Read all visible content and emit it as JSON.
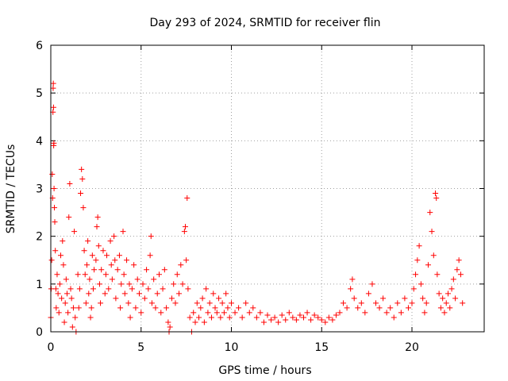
{
  "chart_data": {
    "type": "scatter",
    "title": "Day 293 of 2024, SRMTID for receiver flin",
    "xlabel": "GPS time / hours",
    "ylabel": "SRMTID / TECUs",
    "xlim": [
      0,
      24
    ],
    "ylim": [
      0,
      6
    ],
    "xticks": [
      0,
      5,
      10,
      15,
      20
    ],
    "yticks": [
      0,
      1,
      2,
      3,
      4,
      5,
      6
    ],
    "grid": true,
    "marker": "+",
    "marker_color": "#ff0000",
    "series": [
      {
        "name": "SRMTID",
        "points": [
          [
            0.0,
            0.3
          ],
          [
            0.02,
            0.9
          ],
          [
            0.05,
            1.5
          ],
          [
            0.08,
            3.3
          ],
          [
            0.1,
            2.8
          ],
          [
            0.12,
            4.6
          ],
          [
            0.13,
            5.1
          ],
          [
            0.14,
            5.2
          ],
          [
            0.15,
            4.7
          ],
          [
            0.16,
            3.9
          ],
          [
            0.17,
            3.95
          ],
          [
            0.18,
            3.0
          ],
          [
            0.2,
            2.6
          ],
          [
            0.22,
            2.3
          ],
          [
            0.25,
            1.7
          ],
          [
            0.28,
            0.9
          ],
          [
            0.3,
            0.5
          ],
          [
            0.35,
            1.2
          ],
          [
            0.4,
            0.8
          ],
          [
            0.45,
            0.4
          ],
          [
            0.5,
            1.0
          ],
          [
            0.55,
            1.6
          ],
          [
            0.6,
            0.7
          ],
          [
            0.65,
            1.9
          ],
          [
            0.7,
            1.4
          ],
          [
            0.75,
            0.2
          ],
          [
            0.8,
            0.6
          ],
          [
            0.85,
            1.1
          ],
          [
            0.9,
            0.8
          ],
          [
            0.95,
            0.4
          ],
          [
            1.0,
            2.4
          ],
          [
            1.05,
            3.1
          ],
          [
            1.1,
            0.9
          ],
          [
            1.15,
            0.7
          ],
          [
            1.2,
            0.1
          ],
          [
            1.25,
            0.5
          ],
          [
            1.3,
            2.1
          ],
          [
            1.35,
            0.3
          ],
          [
            1.4,
            0.0
          ],
          [
            1.5,
            1.2
          ],
          [
            1.55,
            0.5
          ],
          [
            1.6,
            0.9
          ],
          [
            1.65,
            2.9
          ],
          [
            1.7,
            3.4
          ],
          [
            1.75,
            3.2
          ],
          [
            1.8,
            2.6
          ],
          [
            1.85,
            1.7
          ],
          [
            1.9,
            1.2
          ],
          [
            1.95,
            0.6
          ],
          [
            2.0,
            1.4
          ],
          [
            2.05,
            1.9
          ],
          [
            2.1,
            0.8
          ],
          [
            2.15,
            1.1
          ],
          [
            2.2,
            0.3
          ],
          [
            2.25,
            0.5
          ],
          [
            2.3,
            1.6
          ],
          [
            2.35,
            0.9
          ],
          [
            2.4,
            1.3
          ],
          [
            2.5,
            1.5
          ],
          [
            2.55,
            2.2
          ],
          [
            2.6,
            2.4
          ],
          [
            2.65,
            1.8
          ],
          [
            2.7,
            1.0
          ],
          [
            2.75,
            0.6
          ],
          [
            2.8,
            1.3
          ],
          [
            2.9,
            1.7
          ],
          [
            3.0,
            0.8
          ],
          [
            3.05,
            1.2
          ],
          [
            3.1,
            1.6
          ],
          [
            3.2,
            0.9
          ],
          [
            3.3,
            1.9
          ],
          [
            3.35,
            1.4
          ],
          [
            3.4,
            1.1
          ],
          [
            3.5,
            2.0
          ],
          [
            3.55,
            1.5
          ],
          [
            3.6,
            0.7
          ],
          [
            3.7,
            1.3
          ],
          [
            3.8,
            1.6
          ],
          [
            3.85,
            0.5
          ],
          [
            3.9,
            1.0
          ],
          [
            4.0,
            2.1
          ],
          [
            4.05,
            1.2
          ],
          [
            4.1,
            0.8
          ],
          [
            4.2,
            1.5
          ],
          [
            4.3,
            0.6
          ],
          [
            4.35,
            1.0
          ],
          [
            4.4,
            0.3
          ],
          [
            4.5,
            0.9
          ],
          [
            4.6,
            1.4
          ],
          [
            4.7,
            0.5
          ],
          [
            4.8,
            1.1
          ],
          [
            4.9,
            0.8
          ],
          [
            5.0,
            0.4
          ],
          [
            5.1,
            1.0
          ],
          [
            5.2,
            0.7
          ],
          [
            5.3,
            1.3
          ],
          [
            5.4,
            0.9
          ],
          [
            5.5,
            1.6
          ],
          [
            5.55,
            2.0
          ],
          [
            5.6,
            0.6
          ],
          [
            5.7,
            1.1
          ],
          [
            5.8,
            0.5
          ],
          [
            5.9,
            0.8
          ],
          [
            6.0,
            1.2
          ],
          [
            6.1,
            0.4
          ],
          [
            6.2,
            0.9
          ],
          [
            6.3,
            1.3
          ],
          [
            6.4,
            0.5
          ],
          [
            6.5,
            0.2
          ],
          [
            6.55,
            0.0
          ],
          [
            6.6,
            0.1
          ],
          [
            6.7,
            0.7
          ],
          [
            6.8,
            1.0
          ],
          [
            6.9,
            0.6
          ],
          [
            7.0,
            1.2
          ],
          [
            7.1,
            0.8
          ],
          [
            7.2,
            1.4
          ],
          [
            7.3,
            1.0
          ],
          [
            7.4,
            2.1
          ],
          [
            7.45,
            2.2
          ],
          [
            7.5,
            1.5
          ],
          [
            7.55,
            2.8
          ],
          [
            7.6,
            0.9
          ],
          [
            7.7,
            0.3
          ],
          [
            7.8,
            0.0
          ],
          [
            7.9,
            0.4
          ],
          [
            8.0,
            0.2
          ],
          [
            8.1,
            0.6
          ],
          [
            8.2,
            0.3
          ],
          [
            8.3,
            0.5
          ],
          [
            8.4,
            0.7
          ],
          [
            8.5,
            0.2
          ],
          [
            8.6,
            0.9
          ],
          [
            8.7,
            0.4
          ],
          [
            8.8,
            0.6
          ],
          [
            8.9,
            0.3
          ],
          [
            9.0,
            0.8
          ],
          [
            9.1,
            0.5
          ],
          [
            9.2,
            0.4
          ],
          [
            9.3,
            0.7
          ],
          [
            9.4,
            0.3
          ],
          [
            9.5,
            0.6
          ],
          [
            9.6,
            0.4
          ],
          [
            9.7,
            0.8
          ],
          [
            9.8,
            0.5
          ],
          [
            9.9,
            0.3
          ],
          [
            10.0,
            0.6
          ],
          [
            10.2,
            0.4
          ],
          [
            10.4,
            0.5
          ],
          [
            10.6,
            0.3
          ],
          [
            10.8,
            0.6
          ],
          [
            11.0,
            0.4
          ],
          [
            11.2,
            0.5
          ],
          [
            11.4,
            0.3
          ],
          [
            11.6,
            0.4
          ],
          [
            11.8,
            0.2
          ],
          [
            12.0,
            0.35
          ],
          [
            12.2,
            0.25
          ],
          [
            12.4,
            0.3
          ],
          [
            12.6,
            0.2
          ],
          [
            12.8,
            0.35
          ],
          [
            13.0,
            0.25
          ],
          [
            13.2,
            0.4
          ],
          [
            13.4,
            0.3
          ],
          [
            13.6,
            0.25
          ],
          [
            13.8,
            0.35
          ],
          [
            14.0,
            0.3
          ],
          [
            14.2,
            0.4
          ],
          [
            14.4,
            0.25
          ],
          [
            14.6,
            0.35
          ],
          [
            14.8,
            0.3
          ],
          [
            15.0,
            0.25
          ],
          [
            15.2,
            0.2
          ],
          [
            15.4,
            0.3
          ],
          [
            15.6,
            0.25
          ],
          [
            15.8,
            0.35
          ],
          [
            16.0,
            0.4
          ],
          [
            16.2,
            0.6
          ],
          [
            16.4,
            0.5
          ],
          [
            16.6,
            0.9
          ],
          [
            16.7,
            1.1
          ],
          [
            16.8,
            0.7
          ],
          [
            17.0,
            0.5
          ],
          [
            17.2,
            0.6
          ],
          [
            17.4,
            0.4
          ],
          [
            17.6,
            0.8
          ],
          [
            17.8,
            1.0
          ],
          [
            18.0,
            0.6
          ],
          [
            18.2,
            0.5
          ],
          [
            18.4,
            0.7
          ],
          [
            18.6,
            0.4
          ],
          [
            18.8,
            0.5
          ],
          [
            19.0,
            0.3
          ],
          [
            19.2,
            0.6
          ],
          [
            19.4,
            0.4
          ],
          [
            19.6,
            0.7
          ],
          [
            19.8,
            0.5
          ],
          [
            20.0,
            0.6
          ],
          [
            20.1,
            0.9
          ],
          [
            20.2,
            1.2
          ],
          [
            20.3,
            1.5
          ],
          [
            20.4,
            1.8
          ],
          [
            20.5,
            1.0
          ],
          [
            20.6,
            0.7
          ],
          [
            20.7,
            0.4
          ],
          [
            20.8,
            0.6
          ],
          [
            20.9,
            1.4
          ],
          [
            21.0,
            2.5
          ],
          [
            21.1,
            2.1
          ],
          [
            21.2,
            1.6
          ],
          [
            21.3,
            2.9
          ],
          [
            21.35,
            2.8
          ],
          [
            21.4,
            1.2
          ],
          [
            21.5,
            0.8
          ],
          [
            21.6,
            0.5
          ],
          [
            21.7,
            0.7
          ],
          [
            21.8,
            0.4
          ],
          [
            21.9,
            0.6
          ],
          [
            22.0,
            0.8
          ],
          [
            22.1,
            0.5
          ],
          [
            22.2,
            0.9
          ],
          [
            22.3,
            1.1
          ],
          [
            22.4,
            0.7
          ],
          [
            22.5,
            1.3
          ],
          [
            22.6,
            1.5
          ],
          [
            22.7,
            1.2
          ],
          [
            22.8,
            0.6
          ]
        ]
      }
    ]
  }
}
